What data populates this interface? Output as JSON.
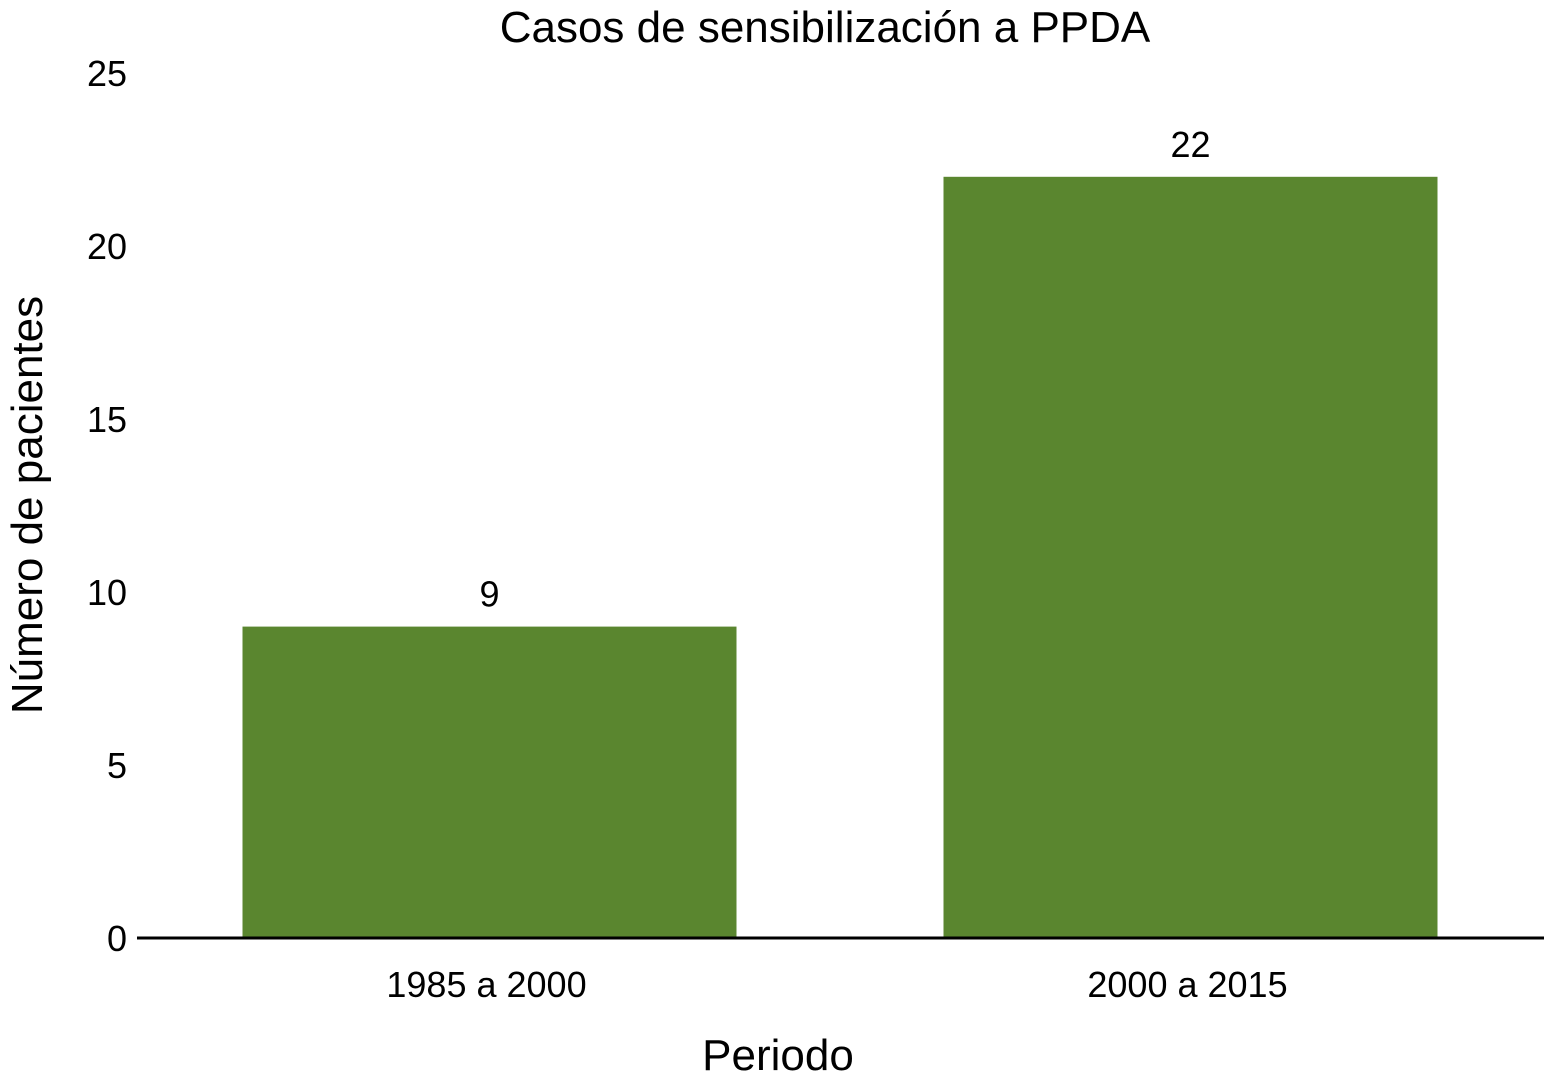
{
  "chart_data": {
    "type": "bar",
    "title": "Casos de sensibilización a PPDA",
    "xlabel": "Periodo",
    "ylabel": "Número de pacientes",
    "categories": [
      "1985 a 2000",
      "2000 a 2015"
    ],
    "values": [
      9,
      22
    ],
    "data_labels": [
      "9",
      "22"
    ],
    "ylim": [
      0,
      25
    ],
    "yticks": [
      0,
      5,
      10,
      15,
      20,
      25
    ],
    "ytick_labels": [
      "0",
      "5",
      "10",
      "15",
      "20",
      "25"
    ],
    "grid": false,
    "legend": "none",
    "bar_color": "#5a862f",
    "axis_color": "#000000"
  }
}
